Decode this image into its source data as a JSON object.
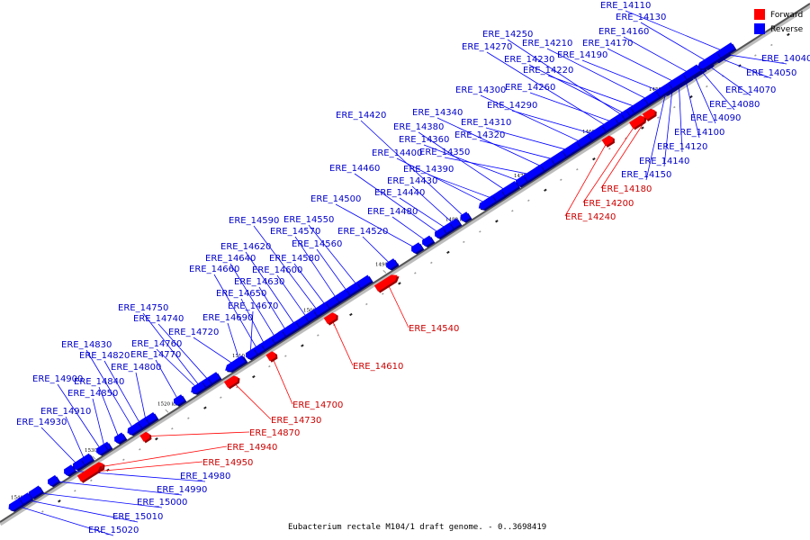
{
  "caption": "Eubacterium rectale M104/1 draft genome. - 0..3698419",
  "legend": {
    "forward": {
      "label": "Forward",
      "color": "#ff0000"
    },
    "reverse": {
      "label": "Reverse",
      "color": "#0000ff"
    }
  },
  "ticks": [
    "1450 kbp",
    "1460 kbp",
    "1470 kbp",
    "1480 kbp",
    "1490 kbp",
    "1500 kbp",
    "1510 kbp",
    "1520 kbp",
    "1530 kbp",
    "1540 kbp"
  ],
  "genes": [
    {
      "id": "ERE_14040",
      "strand": "reverse"
    },
    {
      "id": "ERE_14050",
      "strand": "reverse"
    },
    {
      "id": "ERE_14070",
      "strand": "reverse"
    },
    {
      "id": "ERE_14080",
      "strand": "reverse"
    },
    {
      "id": "ERE_14090",
      "strand": "reverse"
    },
    {
      "id": "ERE_14100",
      "strand": "reverse"
    },
    {
      "id": "ERE_14110",
      "strand": "reverse"
    },
    {
      "id": "ERE_14120",
      "strand": "reverse"
    },
    {
      "id": "ERE_14130",
      "strand": "reverse"
    },
    {
      "id": "ERE_14140",
      "strand": "reverse"
    },
    {
      "id": "ERE_14150",
      "strand": "reverse"
    },
    {
      "id": "ERE_14160",
      "strand": "reverse"
    },
    {
      "id": "ERE_14170",
      "strand": "reverse"
    },
    {
      "id": "ERE_14180",
      "strand": "forward"
    },
    {
      "id": "ERE_14190",
      "strand": "reverse"
    },
    {
      "id": "ERE_14200",
      "strand": "forward"
    },
    {
      "id": "ERE_14210",
      "strand": "reverse"
    },
    {
      "id": "ERE_14220",
      "strand": "reverse"
    },
    {
      "id": "ERE_14230",
      "strand": "reverse"
    },
    {
      "id": "ERE_14240",
      "strand": "forward"
    },
    {
      "id": "ERE_14250",
      "strand": "reverse"
    },
    {
      "id": "ERE_14260",
      "strand": "reverse"
    },
    {
      "id": "ERE_14270",
      "strand": "reverse"
    },
    {
      "id": "ERE_14290",
      "strand": "reverse"
    },
    {
      "id": "ERE_14300",
      "strand": "reverse"
    },
    {
      "id": "ERE_14310",
      "strand": "reverse"
    },
    {
      "id": "ERE_14320",
      "strand": "reverse"
    },
    {
      "id": "ERE_14340",
      "strand": "reverse"
    },
    {
      "id": "ERE_14350",
      "strand": "reverse"
    },
    {
      "id": "ERE_14360",
      "strand": "reverse"
    },
    {
      "id": "ERE_14380",
      "strand": "reverse"
    },
    {
      "id": "ERE_14390",
      "strand": "reverse"
    },
    {
      "id": "ERE_14400",
      "strand": "reverse"
    },
    {
      "id": "ERE_14420",
      "strand": "reverse"
    },
    {
      "id": "ERE_14430",
      "strand": "reverse"
    },
    {
      "id": "ERE_14440",
      "strand": "reverse"
    },
    {
      "id": "ERE_14460",
      "strand": "reverse"
    },
    {
      "id": "ERE_14480",
      "strand": "reverse"
    },
    {
      "id": "ERE_14500",
      "strand": "reverse"
    },
    {
      "id": "ERE_14520",
      "strand": "reverse"
    },
    {
      "id": "ERE_14540",
      "strand": "forward"
    },
    {
      "id": "ERE_14550",
      "strand": "reverse"
    },
    {
      "id": "ERE_14560",
      "strand": "reverse"
    },
    {
      "id": "ERE_14570",
      "strand": "reverse"
    },
    {
      "id": "ERE_14580",
      "strand": "reverse"
    },
    {
      "id": "ERE_14590",
      "strand": "reverse"
    },
    {
      "id": "ERE_14600",
      "strand": "reverse"
    },
    {
      "id": "ERE_14610",
      "strand": "forward"
    },
    {
      "id": "ERE_14620",
      "strand": "reverse"
    },
    {
      "id": "ERE_14630",
      "strand": "reverse"
    },
    {
      "id": "ERE_14640",
      "strand": "reverse"
    },
    {
      "id": "ERE_14650",
      "strand": "reverse"
    },
    {
      "id": "ERE_14660",
      "strand": "reverse"
    },
    {
      "id": "ERE_14670",
      "strand": "reverse"
    },
    {
      "id": "ERE_14690",
      "strand": "reverse"
    },
    {
      "id": "ERE_14700",
      "strand": "forward"
    },
    {
      "id": "ERE_14720",
      "strand": "reverse"
    },
    {
      "id": "ERE_14730",
      "strand": "forward"
    },
    {
      "id": "ERE_14740",
      "strand": "reverse"
    },
    {
      "id": "ERE_14750",
      "strand": "reverse"
    },
    {
      "id": "ERE_14760",
      "strand": "reverse"
    },
    {
      "id": "ERE_14770",
      "strand": "reverse"
    },
    {
      "id": "ERE_14800",
      "strand": "reverse"
    },
    {
      "id": "ERE_14820",
      "strand": "reverse"
    },
    {
      "id": "ERE_14830",
      "strand": "reverse"
    },
    {
      "id": "ERE_14840",
      "strand": "reverse"
    },
    {
      "id": "ERE_14850",
      "strand": "reverse"
    },
    {
      "id": "ERE_14870",
      "strand": "forward"
    },
    {
      "id": "ERE_14900",
      "strand": "reverse"
    },
    {
      "id": "ERE_14910",
      "strand": "reverse"
    },
    {
      "id": "ERE_14930",
      "strand": "reverse"
    },
    {
      "id": "ERE_14940",
      "strand": "forward"
    },
    {
      "id": "ERE_14950",
      "strand": "forward"
    },
    {
      "id": "ERE_14980",
      "strand": "reverse"
    },
    {
      "id": "ERE_14990",
      "strand": "reverse"
    },
    {
      "id": "ERE_15000",
      "strand": "reverse"
    },
    {
      "id": "ERE_15010",
      "strand": "reverse"
    },
    {
      "id": "ERE_15020",
      "strand": "reverse"
    }
  ]
}
